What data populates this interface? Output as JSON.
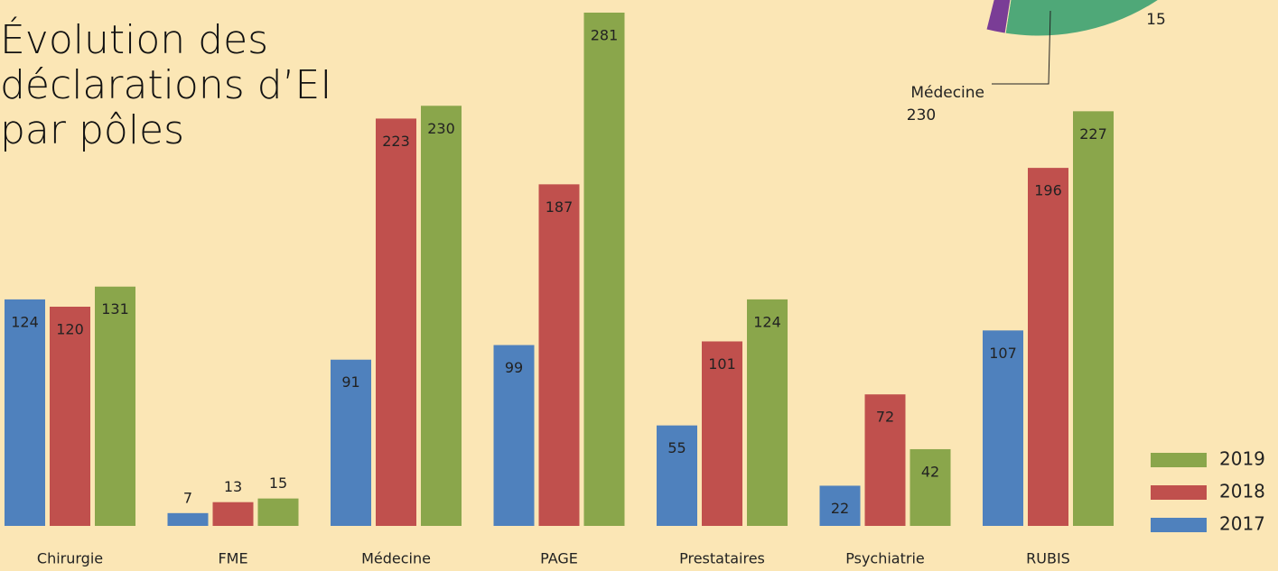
{
  "chart_data": [
    {
      "type": "bar",
      "title": "Évolution des déclarations d’EI par pôles",
      "categories": [
        "Chirurgie",
        "FME",
        "Médecine",
        "PAGE",
        "Prestataires",
        "Psychiatrie",
        "RUBIS"
      ],
      "series": [
        {
          "name": "2017",
          "color": "#4f81bd",
          "values": [
            124,
            7,
            91,
            99,
            55,
            22,
            107
          ]
        },
        {
          "name": "2018",
          "color": "#c0504d",
          "values": [
            120,
            13,
            223,
            187,
            101,
            72,
            196
          ]
        },
        {
          "name": "2019",
          "color": "#8aa64b",
          "values": [
            131,
            15,
            230,
            281,
            124,
            42,
            227
          ]
        }
      ],
      "legend": "bottom-right"
    },
    {
      "type": "pie",
      "categories": [
        "Médecine",
        null
      ],
      "values": [
        230,
        15
      ],
      "colors": [
        "#4fa878",
        "#7a3d96"
      ]
    }
  ]
}
